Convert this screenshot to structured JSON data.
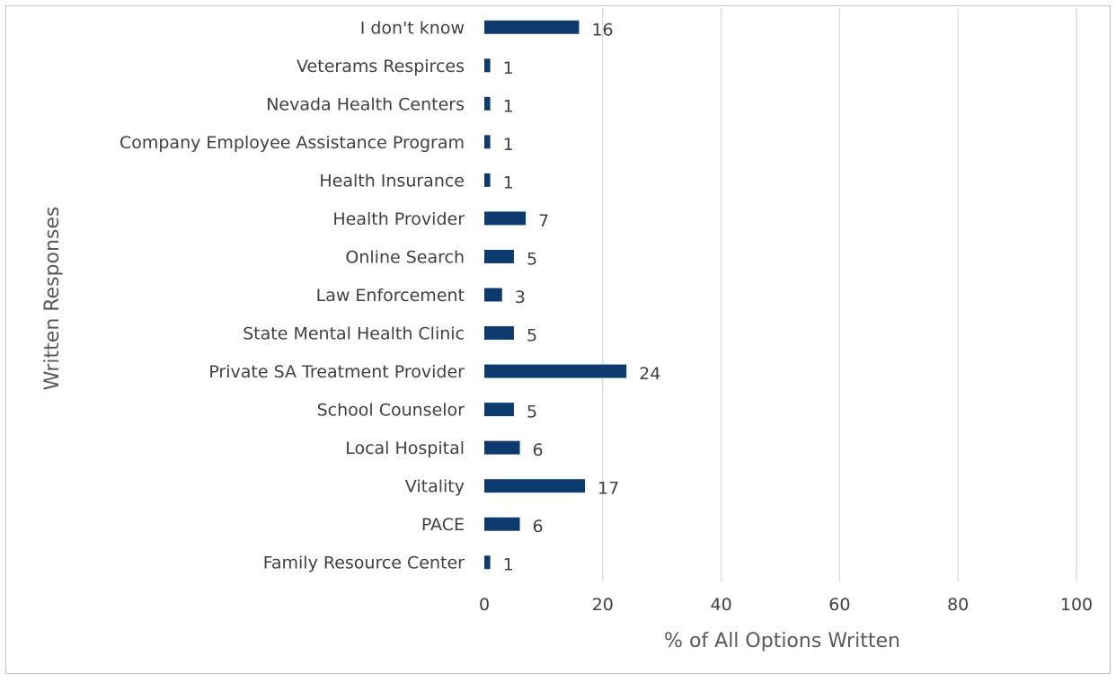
{
  "chart_data": {
    "type": "bar",
    "orientation": "horizontal",
    "categories": [
      "I don't know",
      "Veterams Respirces",
      "Nevada Health Centers",
      "Company Employee Assistance Program",
      "Health Insurance",
      "Health Provider",
      "Online Search",
      "Law Enforcement",
      "State Mental Health Clinic",
      "Private SA Treatment Provider",
      "School Counselor",
      "Local Hospital",
      "Vitality",
      "PACE",
      "Family Resource Center"
    ],
    "values": [
      16,
      1,
      1,
      1,
      1,
      7,
      5,
      3,
      5,
      24,
      5,
      6,
      17,
      6,
      1
    ],
    "data_labels": [
      "16",
      "1",
      "1",
      "1",
      "1",
      "7",
      "5",
      "3",
      "5",
      "24",
      "5",
      "6",
      "17",
      "6",
      "1"
    ],
    "xlabel": "% of All Options Written",
    "ylabel": "Written Responses",
    "xlim": [
      0,
      100
    ],
    "xticks": [
      0,
      20,
      40,
      60,
      80,
      100
    ],
    "xtick_labels": [
      "0",
      "20",
      "40",
      "60",
      "80",
      "100"
    ],
    "grid": "vertical",
    "legend": "none",
    "bar_color": "#0d3b70"
  }
}
